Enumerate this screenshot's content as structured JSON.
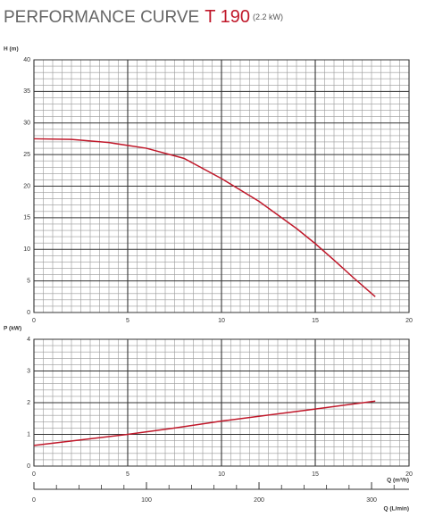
{
  "title": {
    "text": "PERFORMANCE CURVE",
    "model": "T 190",
    "rating": "(2.2 kW)"
  },
  "chart_data": [
    {
      "type": "line",
      "ylabel": "H (m)",
      "xlim": [
        0,
        20
      ],
      "xticks": [
        0,
        5,
        10,
        15,
        20
      ],
      "ylim": [
        0,
        40
      ],
      "yticks": [
        0,
        5,
        10,
        15,
        20,
        25,
        30,
        35,
        40
      ],
      "grid": true,
      "minor_grid": true,
      "series": [
        {
          "name": "H",
          "color": "#c0182a",
          "x": [
            0,
            2,
            4,
            6,
            8,
            10,
            12,
            14,
            15,
            16,
            17,
            18.2
          ],
          "values": [
            27.5,
            27.4,
            26.9,
            26.0,
            24.4,
            21.2,
            17.6,
            13.3,
            10.9,
            8.3,
            5.6,
            2.5
          ]
        }
      ]
    },
    {
      "type": "line",
      "ylabel": "P (kW)",
      "xlabel": "Q (m³/h)",
      "xlim": [
        0,
        20
      ],
      "xticks": [
        0,
        5,
        10,
        15,
        20
      ],
      "ylim": [
        0,
        4
      ],
      "yticks": [
        0,
        1,
        2,
        3,
        4
      ],
      "grid": true,
      "minor_grid": true,
      "series": [
        {
          "name": "P",
          "color": "#c0182a",
          "x": [
            0,
            5,
            7.5,
            10,
            15,
            18.2
          ],
          "values": [
            0.65,
            1.0,
            1.2,
            1.42,
            1.8,
            2.05
          ]
        }
      ],
      "secondary_x": {
        "label": "Q (L/min)",
        "xlim": [
          0,
          333.3
        ],
        "xticks": [
          0,
          100,
          200,
          300
        ],
        "minor_xticks": [
          20,
          40,
          60,
          80,
          120,
          140,
          160,
          180,
          220,
          240,
          260,
          280,
          320
        ]
      }
    }
  ]
}
